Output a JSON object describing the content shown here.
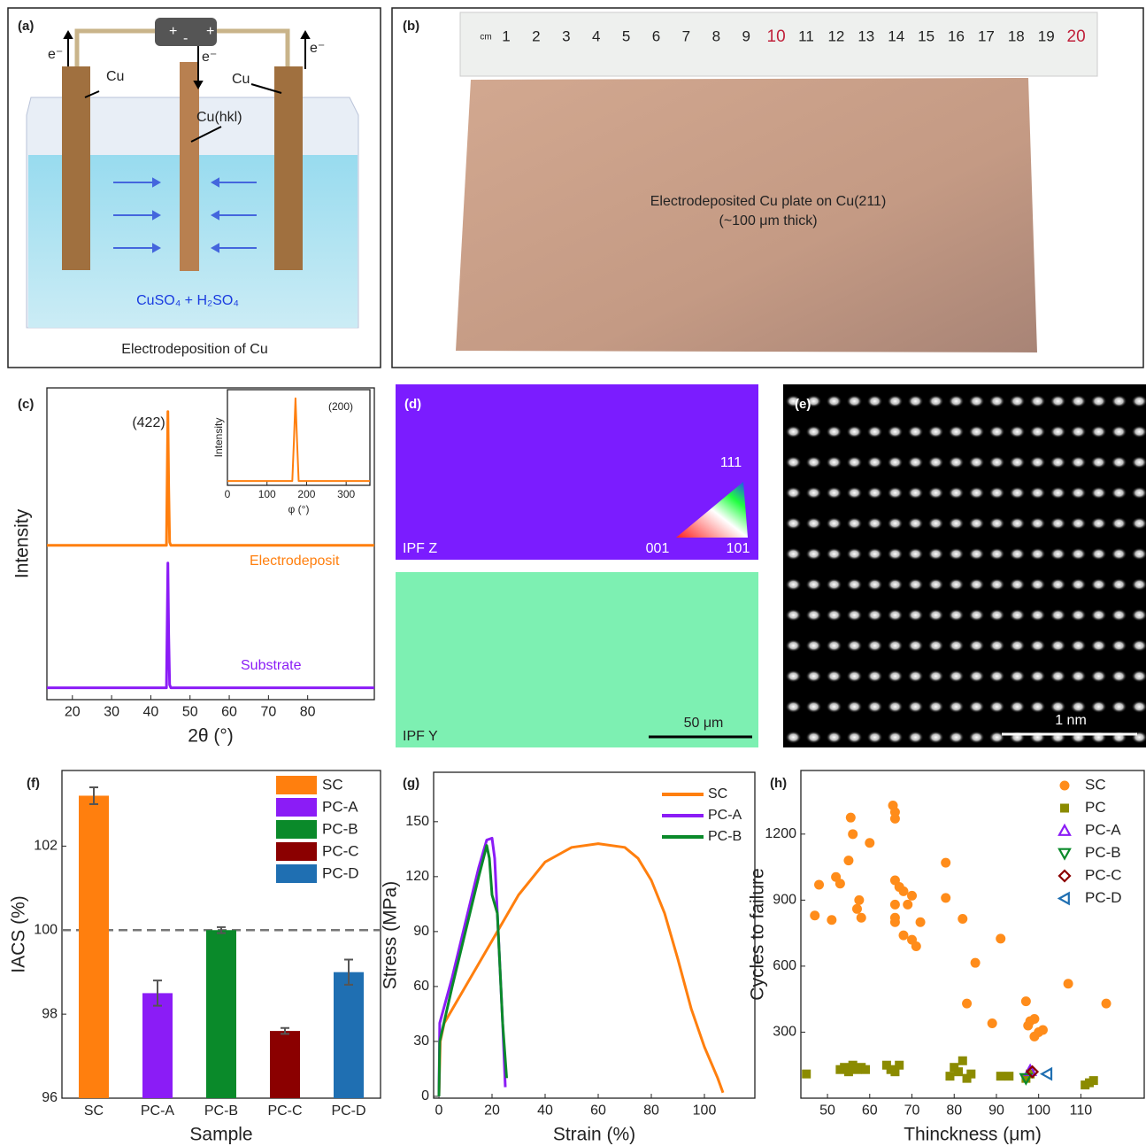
{
  "panels": {
    "a": {
      "label": "(a)",
      "battery": [
        "+",
        "-",
        "+"
      ],
      "electron": [
        "e⁻",
        "e⁻",
        "e⁻"
      ],
      "electrode_left": "Cu",
      "electrode_right": "Cu",
      "electrode_middle": "Cu(hkl)",
      "electrolyte": "CuSO₄ + H₂SO₄",
      "caption": "Electrodeposition of Cu"
    },
    "b": {
      "label": "(b)",
      "ruler": [
        "cm",
        "1",
        "2",
        "3",
        "4",
        "5",
        "6",
        "7",
        "8",
        "9",
        "10",
        "11",
        "12",
        "13",
        "14",
        "15",
        "16",
        "17",
        "18",
        "19",
        "20"
      ],
      "caption": [
        "Electrodeposited Cu plate on Cu(211)",
        "(~100 μm thick)"
      ]
    },
    "d": {
      "label": "(d)",
      "triangle": [
        "111",
        "001",
        "101"
      ],
      "map_top": "IPF Z",
      "map_bottom": "IPF Y",
      "scale": "50 μm"
    },
    "e": {
      "label": "(e)",
      "scale": "1 nm"
    }
  },
  "chart_data": [
    {
      "type": "line",
      "panel": "(c)",
      "xlabel": "2θ (°)",
      "ylabel": "Intensity",
      "xlim": [
        13.5,
        97
      ],
      "xticks": [
        20,
        30,
        40,
        50,
        60,
        70,
        80
      ],
      "ylim": [
        0,
        1.05
      ],
      "annotations": [
        "(422)"
      ],
      "x": [
        13.5,
        44.0,
        44.35,
        44.55,
        44.8,
        45.1,
        97
      ],
      "series": [
        {
          "name": "Electrodeposit",
          "color": "#ff7f0e",
          "values": [
            0.52,
            0.52,
            0.97,
            0.72,
            0.53,
            0.52,
            0.52
          ]
        },
        {
          "name": "Substrate",
          "color": "#8b1cf6",
          "values": [
            0.04,
            0.04,
            0.46,
            0.22,
            0.05,
            0.04,
            0.04
          ]
        }
      ]
    },
    {
      "type": "line",
      "xlabel": "φ (°)",
      "ylabel": "Intensity",
      "xlim": [
        0,
        360
      ],
      "xticks": [
        0,
        100,
        200,
        300
      ],
      "ylim": [
        0,
        1.1
      ],
      "annotations": [
        "(200)"
      ],
      "x": [
        0,
        164,
        168,
        172,
        176,
        180,
        360
      ],
      "series": [
        {
          "color": "#ff7f0e",
          "values": [
            0.05,
            0.05,
            0.5,
            1.0,
            0.5,
            0.05,
            0.05
          ]
        }
      ]
    },
    {
      "type": "bar",
      "panel": "(f)",
      "xlabel": "Sample",
      "ylabel": "IACS (%)",
      "ylim": [
        96,
        103.8
      ],
      "yticks": [
        96,
        98,
        100,
        102
      ],
      "reference_line": 100,
      "categories": [
        "SC",
        "PC-A",
        "PC-B",
        "PC-C",
        "PC-D"
      ],
      "values": [
        103.2,
        98.5,
        100.0,
        97.6,
        99.0
      ],
      "errors": [
        0.2,
        0.3,
        0.07,
        0.07,
        0.3
      ],
      "colors": [
        "#ff7f0e",
        "#8b1cf6",
        "#0a8a2a",
        "#8b0000",
        "#1f6fb2"
      ]
    },
    {
      "type": "line",
      "panel": "(g)",
      "xlabel": "Strain (%)",
      "ylabel": "Stress (MPa)",
      "xlim": [
        -2,
        119
      ],
      "xticks": [
        0,
        20,
        40,
        60,
        80,
        100
      ],
      "ylim": [
        -1,
        177
      ],
      "yticks": [
        0,
        30,
        60,
        90,
        120,
        150
      ],
      "series": [
        {
          "name": "SC",
          "color": "#ff7f0e",
          "x": [
            0,
            0.5,
            2,
            10,
            20,
            30,
            40,
            50,
            60,
            70,
            75,
            80,
            85,
            90,
            95,
            100,
            105,
            107
          ],
          "values": [
            0,
            30,
            40,
            60,
            85,
            110,
            128,
            136,
            138,
            136,
            130,
            118,
            100,
            75,
            48,
            27,
            10,
            2
          ]
        },
        {
          "name": "PC-A",
          "color": "#8b1cf6",
          "x": [
            0,
            0.3,
            5,
            10,
            15,
            18,
            20,
            21,
            22,
            24,
            25
          ],
          "values": [
            0,
            40,
            65,
            95,
            125,
            140,
            141,
            130,
            100,
            40,
            5
          ]
        },
        {
          "name": "PC-B",
          "color": "#0a8a2a",
          "x": [
            0,
            0.3,
            5,
            10,
            15,
            18,
            19,
            20,
            22,
            24,
            25.5
          ],
          "values": [
            0,
            30,
            60,
            90,
            120,
            137,
            130,
            110,
            100,
            40,
            10
          ]
        }
      ]
    },
    {
      "type": "scatter",
      "panel": "(h)",
      "xlabel": "Thinckness (μm)",
      "ylabel": "Cycles to failure",
      "xlim": [
        43.7,
        125
      ],
      "xticks": [
        50,
        60,
        70,
        80,
        90,
        100,
        110
      ],
      "ylim": [
        0,
        1489
      ],
      "yticks": [
        300,
        600,
        900,
        1200
      ],
      "series": [
        {
          "name": "SC",
          "color": "#ff8c1a",
          "marker": "circle",
          "filled": true,
          "x": [
            47,
            48,
            51,
            52,
            53,
            55,
            55.5,
            56,
            57,
            57.5,
            58,
            60,
            65.5,
            66,
            66,
            66,
            66,
            66,
            66,
            67,
            68,
            68,
            69,
            70,
            70,
            71,
            72,
            78,
            78,
            82,
            83,
            85,
            89,
            91,
            97,
            97.5,
            98,
            99,
            99,
            100,
            101,
            107,
            116
          ],
          "values": [
            830,
            970,
            810,
            1005,
            975,
            1080,
            1275,
            1200,
            860,
            900,
            820,
            1160,
            1330,
            1300,
            1270,
            990,
            880,
            820,
            800,
            960,
            940,
            740,
            880,
            920,
            720,
            690,
            800,
            1070,
            910,
            815,
            430,
            615,
            340,
            725,
            440,
            330,
            350,
            360,
            280,
            300,
            310,
            520,
            430
          ]
        },
        {
          "name": "PC",
          "color": "#8b8b00",
          "marker": "square",
          "filled": true,
          "x": [
            45,
            53,
            54,
            55,
            56,
            57,
            58,
            59,
            64,
            65,
            66,
            67,
            79,
            80,
            81,
            82,
            83,
            84,
            91,
            93,
            97,
            98,
            111,
            112,
            113
          ],
          "values": [
            110,
            130,
            140,
            120,
            150,
            130,
            140,
            130,
            150,
            130,
            120,
            150,
            100,
            140,
            120,
            170,
            90,
            110,
            100,
            100,
            90,
            110,
            60,
            70,
            80
          ]
        },
        {
          "name": "PC-A",
          "color": "#8b1cf6",
          "marker": "triangle-up",
          "filled": false,
          "x": [
            98
          ],
          "values": [
            125
          ]
        },
        {
          "name": "PC-B",
          "color": "#0a8a2a",
          "marker": "triangle-down",
          "filled": false,
          "x": [
            97
          ],
          "values": [
            90
          ]
        },
        {
          "name": "PC-C",
          "color": "#8b0000",
          "marker": "diamond",
          "filled": false,
          "x": [
            98.5
          ],
          "values": [
            120
          ]
        },
        {
          "name": "PC-D",
          "color": "#1f6fb2",
          "marker": "triangle-left",
          "filled": false,
          "x": [
            102
          ],
          "values": [
            110
          ]
        }
      ]
    }
  ]
}
